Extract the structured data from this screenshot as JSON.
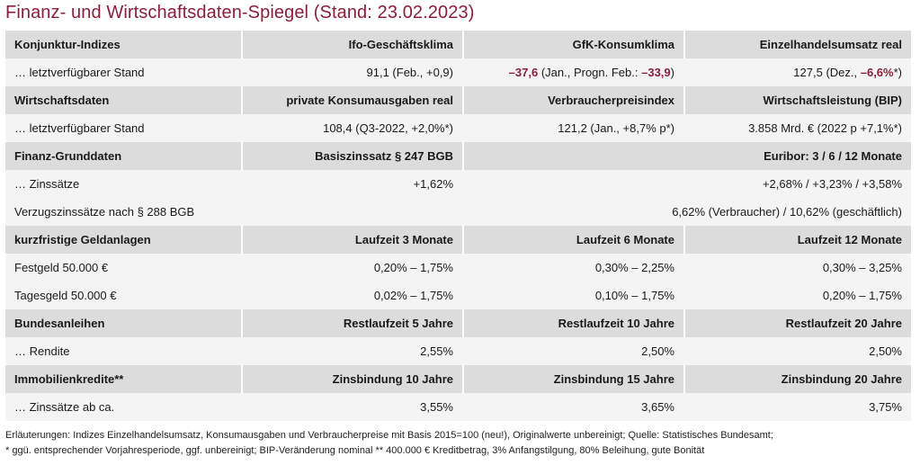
{
  "title": "Finanz- und Wirtschaftsdaten-Spiegel (Stand: 23.02.2023)",
  "konjunktur": {
    "header": [
      "Konjunktur-Indizes",
      "Ifo-Geschäftsklima",
      "GfK-Konsumklima",
      "Einzelhandelsumsatz real"
    ],
    "row_label": "… letztverfügbarer Stand",
    "ifo": "91,1 (Feb., +0,9)",
    "gfk_value": "–37,6",
    "gfk_mid": " (Jan., Progn. Feb.: ",
    "gfk_prog": "–33,9",
    "gfk_end": ")",
    "ez_start": "127,5 (Dez., ",
    "ez_value": "–6,6%",
    "ez_end": "*)"
  },
  "wirtschaft": {
    "header": [
      "Wirtschaftsdaten",
      "private Konsumausgaben real",
      "Verbraucherpreisindex",
      "Wirtschaftsleistung (BIP)"
    ],
    "row_label": "… letztverfügbarer Stand",
    "values": [
      "108,4 (Q3-2022, +2,0%*)",
      "121,2 (Jan., +8,7% p*)",
      "3.858 Mrd. € (2022 p +7,1%*)"
    ]
  },
  "finanz": {
    "header": [
      "Finanz-Grunddaten",
      "Basiszinssatz § 247 BGB",
      "Euribor: 3 / 6 / 12 Monate"
    ],
    "zins_label": "… Zinssätze",
    "basiszins": "+1,62%",
    "euribor": "+2,68% / +3,23% / +3,58%",
    "verzug_label": "Verzugszinssätze nach § 288 BGB",
    "verzug_value": "6,62% (Verbraucher) / 10,62% (geschäftlich)"
  },
  "geldanlagen": {
    "header": [
      "kurzfristige Geldanlagen",
      "Laufzeit 3 Monate",
      "Laufzeit 6 Monate",
      "Laufzeit 12 Monate"
    ],
    "rows": [
      {
        "label": "Festgeld 50.000 €",
        "values": [
          "0,20% – 1,75%",
          "0,30% – 2,25%",
          "0,30% – 3,25%"
        ]
      },
      {
        "label": "Tagesgeld 50.000 €",
        "values": [
          "0,02% – 1,75%",
          "0,10% – 1,75%",
          "0,20% – 1,75%"
        ]
      }
    ]
  },
  "anleihen": {
    "header": [
      "Bundesanleihen",
      "Restlaufzeit 5 Jahre",
      "Restlaufzeit 10 Jahre",
      "Restlaufzeit 20 Jahre"
    ],
    "row_label": "… Rendite",
    "values": [
      "2,55%",
      "2,50%",
      "2,50%"
    ]
  },
  "immobilien": {
    "header": [
      "Immobilienkredite**",
      "Zinsbindung 10 Jahre",
      "Zinsbindung 15 Jahre",
      "Zinsbindung 20 Jahre"
    ],
    "row_label": "… Zinssätze ab ca.",
    "values": [
      "3,55%",
      "3,65%",
      "3,75%"
    ]
  },
  "footnotes": [
    "Erläuterungen: Indizes Einzelhandelsumsatz, Konsumausgaben und Verbraucherpreise mit Basis 2015=100 (neu!), Originalwerte unbereinigt; Quelle: Statistisches Bundesamt;",
    "* ggü. entsprechender Vorjahresperiode, ggf. unbereinigt; BIP-Veränderung nominal   ** 400.000 € Kreditbetrag, 3% Anfangstilgung, 80% Beleihung, gute Bonität"
  ],
  "colors": {
    "accent": "#8a1f3a",
    "header_bg": "#dcdcdc",
    "row_bg": "#f4f4f4"
  }
}
